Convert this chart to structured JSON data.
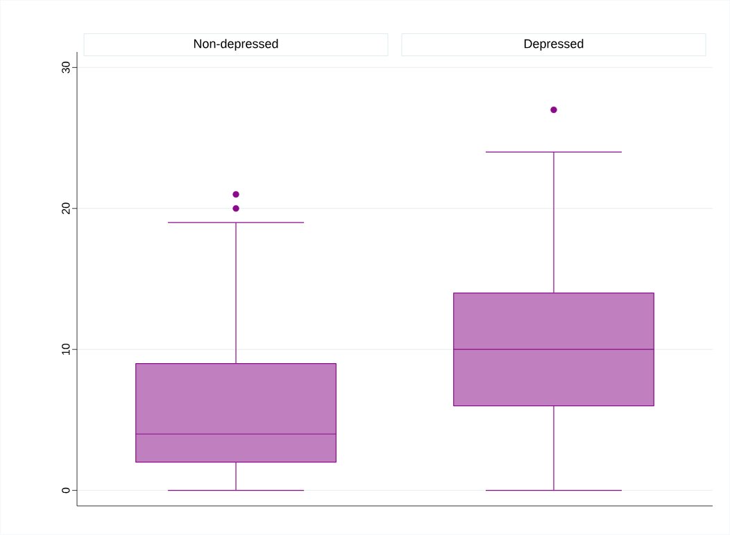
{
  "chart_data": {
    "type": "box",
    "categories": [
      "Non-depressed",
      "Depressed"
    ],
    "series": [
      {
        "color": "#c080c0",
        "boxes": [
          {
            "low": 0,
            "q1": 2,
            "median": 4,
            "q3": 9,
            "high": 19,
            "outliers": [
              20,
              21
            ]
          },
          {
            "low": 0,
            "q1": 6,
            "median": 10,
            "q3": 14,
            "high": 24,
            "outliers": [
              27
            ]
          }
        ]
      }
    ],
    "ylim": [
      -1.1,
      31.1
    ],
    "yticks": [
      0,
      10,
      20,
      30
    ],
    "grid": "y"
  }
}
